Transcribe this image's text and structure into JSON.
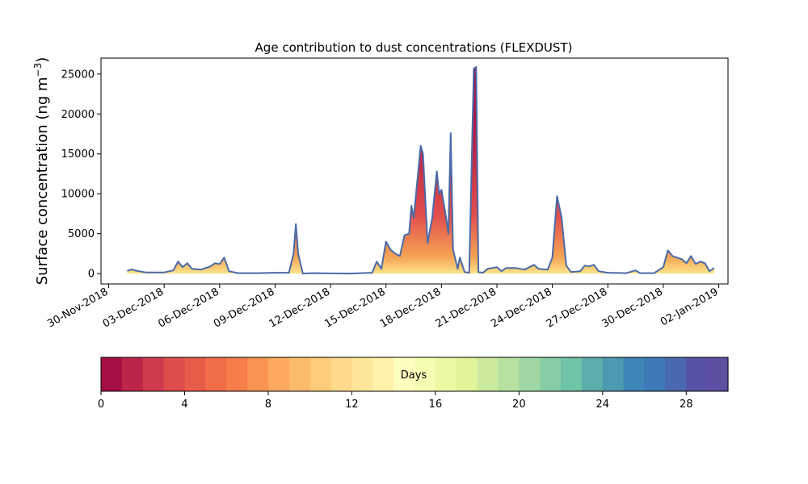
{
  "chart_data": {
    "type": "area",
    "title": "Age contribution to dust concentrations (FLEXDUST)",
    "ylabel_main": "Surface concentration (ng m",
    "ylabel_sup": "−3",
    "ylabel_close": ")",
    "xlabel": "",
    "ylim": [
      -1300,
      27000
    ],
    "xlim": [
      "2018-11-29T14:00",
      "2019-01-02T12:00"
    ],
    "y_ticks": [
      0,
      5000,
      10000,
      15000,
      20000,
      25000
    ],
    "x_ticks": [
      {
        "date": "2018-11-30T00:00",
        "label": "30-Nov-2018"
      },
      {
        "date": "2018-12-03T00:00",
        "label": "03-Dec-2018"
      },
      {
        "date": "2018-12-06T00:00",
        "label": "06-Dec-2018"
      },
      {
        "date": "2018-12-09T00:00",
        "label": "09-Dec-2018"
      },
      {
        "date": "2018-12-12T00:00",
        "label": "12-Dec-2018"
      },
      {
        "date": "2018-12-15T00:00",
        "label": "15-Dec-2018"
      },
      {
        "date": "2018-12-18T00:00",
        "label": "18-Dec-2018"
      },
      {
        "date": "2018-12-21T00:00",
        "label": "21-Dec-2018"
      },
      {
        "date": "2018-12-24T00:00",
        "label": "24-Dec-2018"
      },
      {
        "date": "2018-12-27T00:00",
        "label": "27-Dec-2018"
      },
      {
        "date": "2018-12-30T00:00",
        "label": "30-Dec-2018"
      },
      {
        "date": "2019-01-02T00:00",
        "label": "02-Jan-2019"
      }
    ],
    "total_series": {
      "name": "",
      "color": "#4a6aa8",
      "points": [
        [
          "2018-12-01T00:00",
          350
        ],
        [
          "2018-12-01T06:00",
          500
        ],
        [
          "2018-12-01T12:00",
          350
        ],
        [
          "2018-12-02T00:00",
          150
        ],
        [
          "2018-12-03T00:00",
          150
        ],
        [
          "2018-12-03T12:00",
          400
        ],
        [
          "2018-12-03T18:00",
          1500
        ],
        [
          "2018-12-04T00:00",
          800
        ],
        [
          "2018-12-04T06:00",
          1300
        ],
        [
          "2018-12-04T12:00",
          600
        ],
        [
          "2018-12-05T00:00",
          500
        ],
        [
          "2018-12-05T12:00",
          900
        ],
        [
          "2018-12-05T18:00",
          1300
        ],
        [
          "2018-12-06T00:00",
          1200
        ],
        [
          "2018-12-06T06:00",
          2000
        ],
        [
          "2018-12-06T12:00",
          300
        ],
        [
          "2018-12-07T00:00",
          50
        ],
        [
          "2018-12-08T00:00",
          50
        ],
        [
          "2018-12-09T00:00",
          100
        ],
        [
          "2018-12-09T18:00",
          100
        ],
        [
          "2018-12-10T00:00",
          2500
        ],
        [
          "2018-12-10T03:00",
          6200
        ],
        [
          "2018-12-10T06:00",
          2500
        ],
        [
          "2018-12-10T12:00",
          0
        ],
        [
          "2018-12-11T00:00",
          50
        ],
        [
          "2018-12-13T00:00",
          0
        ],
        [
          "2018-12-14T06:00",
          100
        ],
        [
          "2018-12-14T12:00",
          1500
        ],
        [
          "2018-12-14T18:00",
          600
        ],
        [
          "2018-12-15T00:00",
          4000
        ],
        [
          "2018-12-15T06:00",
          3000
        ],
        [
          "2018-12-15T12:00",
          2500
        ],
        [
          "2018-12-15T18:00",
          2200
        ],
        [
          "2018-12-16T00:00",
          4800
        ],
        [
          "2018-12-16T06:00",
          5000
        ],
        [
          "2018-12-16T09:00",
          8500
        ],
        [
          "2018-12-16T12:00",
          7000
        ],
        [
          "2018-12-16T18:00",
          13000
        ],
        [
          "2018-12-16T21:00",
          16000
        ],
        [
          "2018-12-17T00:00",
          15000
        ],
        [
          "2018-12-17T06:00",
          3800
        ],
        [
          "2018-12-17T12:00",
          7000
        ],
        [
          "2018-12-17T18:00",
          12800
        ],
        [
          "2018-12-17T21:00",
          10000
        ],
        [
          "2018-12-18T00:00",
          10500
        ],
        [
          "2018-12-18T06:00",
          7000
        ],
        [
          "2018-12-18T09:00",
          5000
        ],
        [
          "2018-12-18T12:00",
          17600
        ],
        [
          "2018-12-18T15:00",
          3000
        ],
        [
          "2018-12-18T21:00",
          600
        ],
        [
          "2018-12-19T00:00",
          2000
        ],
        [
          "2018-12-19T06:00",
          200
        ],
        [
          "2018-12-19T12:00",
          100
        ],
        [
          "2018-12-19T18:00",
          25700
        ],
        [
          "2018-12-19T21:00",
          25900
        ],
        [
          "2018-12-20T00:00",
          200
        ],
        [
          "2018-12-20T06:00",
          100
        ],
        [
          "2018-12-20T12:00",
          600
        ],
        [
          "2018-12-21T00:00",
          800
        ],
        [
          "2018-12-21T06:00",
          300
        ],
        [
          "2018-12-21T12:00",
          700
        ],
        [
          "2018-12-22T00:00",
          700
        ],
        [
          "2018-12-22T12:00",
          500
        ],
        [
          "2018-12-23T00:00",
          1100
        ],
        [
          "2018-12-23T06:00",
          600
        ],
        [
          "2018-12-23T18:00",
          500
        ],
        [
          "2018-12-24T00:00",
          2000
        ],
        [
          "2018-12-24T06:00",
          9700
        ],
        [
          "2018-12-24T12:00",
          7000
        ],
        [
          "2018-12-24T18:00",
          1000
        ],
        [
          "2018-12-25T00:00",
          200
        ],
        [
          "2018-12-25T12:00",
          300
        ],
        [
          "2018-12-25T18:00",
          1000
        ],
        [
          "2018-12-26T00:00",
          900
        ],
        [
          "2018-12-26T06:00",
          1100
        ],
        [
          "2018-12-26T12:00",
          300
        ],
        [
          "2018-12-27T00:00",
          100
        ],
        [
          "2018-12-28T00:00",
          50
        ],
        [
          "2018-12-28T12:00",
          400
        ],
        [
          "2018-12-28T18:00",
          50
        ],
        [
          "2018-12-29T12:00",
          50
        ],
        [
          "2018-12-30T00:00",
          800
        ],
        [
          "2018-12-30T06:00",
          2900
        ],
        [
          "2018-12-30T12:00",
          2200
        ],
        [
          "2018-12-31T00:00",
          1800
        ],
        [
          "2018-12-31T06:00",
          1300
        ],
        [
          "2018-12-31T12:00",
          2200
        ],
        [
          "2018-12-31T18:00",
          1200
        ],
        [
          "2019-01-01T00:00",
          1500
        ],
        [
          "2019-01-01T06:00",
          1300
        ],
        [
          "2019-01-01T12:00",
          300
        ],
        [
          "2019-01-01T18:00",
          700
        ]
      ]
    },
    "colorbar": {
      "label": "Days",
      "range": [
        0,
        30
      ],
      "ticks": [
        0,
        4,
        8,
        12,
        16,
        20,
        24,
        28
      ],
      "colors": [
        "#a50f45",
        "#bc2547",
        "#cf3a4c",
        "#de4c4b",
        "#e75c49",
        "#f16d47",
        "#f67e4b",
        "#f99354",
        "#fca85e",
        "#fdbb6c",
        "#fdcb7a",
        "#fed98b",
        "#fee699",
        "#fff1a8",
        "#ffffbf",
        "#f7fcb3",
        "#edf8a2",
        "#e0f399",
        "#cbea9d",
        "#b6e1a1",
        "#9fd7a4",
        "#86cda5",
        "#6fc3a6",
        "#5baeaa",
        "#4b9ab2",
        "#3d86b9",
        "#3f79b7",
        "#4a68ae",
        "#5752a6",
        "#5e4fa2"
      ]
    }
  }
}
